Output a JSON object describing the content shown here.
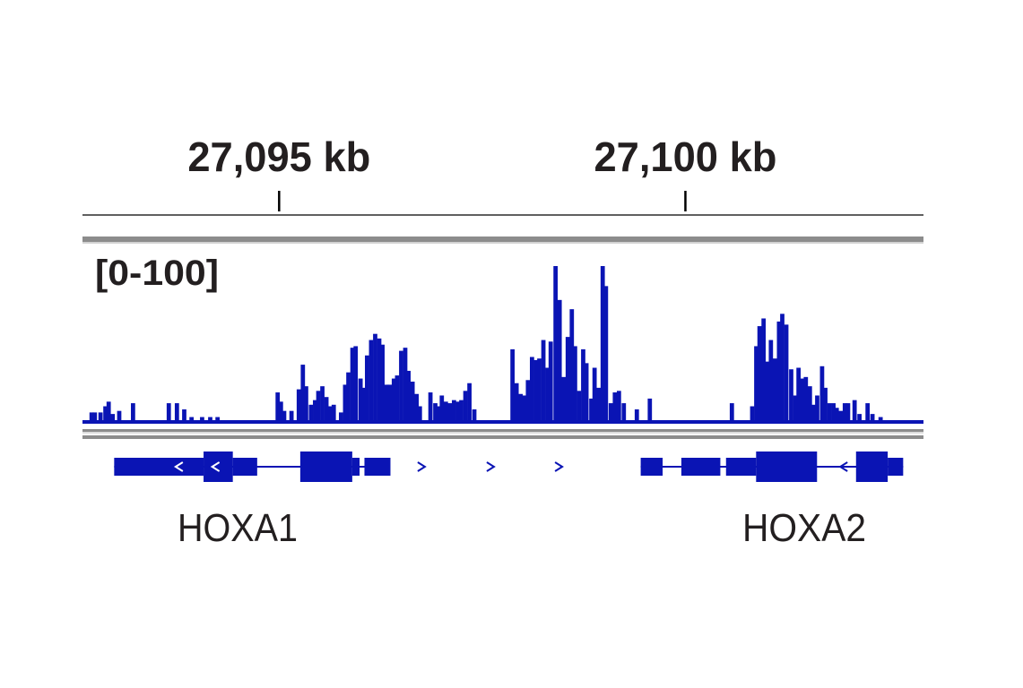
{
  "colors": {
    "track": "#0a14b4",
    "text": "#231f20",
    "separator": "#8c8c8c",
    "ruler_line": "#000000"
  },
  "chart_data": {
    "type": "area",
    "ruler": {
      "unit": "kb",
      "ticks": [
        {
          "position": 27095,
          "label": "27,095 kb"
        },
        {
          "position": 27100,
          "label": "27,100 kb"
        }
      ]
    },
    "data_range_label": "[0-100]",
    "xlim": [
      27092.58,
      27102.93
    ],
    "ylim": [
      0,
      100
    ],
    "signal": [
      {
        "x": 27092.69,
        "y": 5
      },
      {
        "x": 27092.73,
        "y": 5
      },
      {
        "x": 27092.8,
        "y": 5
      },
      {
        "x": 27092.86,
        "y": 9
      },
      {
        "x": 27092.9,
        "y": 12
      },
      {
        "x": 27092.95,
        "y": 4
      },
      {
        "x": 27093.03,
        "y": 6
      },
      {
        "x": 27093.2,
        "y": 11
      },
      {
        "x": 27093.64,
        "y": 11
      },
      {
        "x": 27093.74,
        "y": 11
      },
      {
        "x": 27093.83,
        "y": 7
      },
      {
        "x": 27093.92,
        "y": 2
      },
      {
        "x": 27094.05,
        "y": 2
      },
      {
        "x": 27094.15,
        "y": 2
      },
      {
        "x": 27094.24,
        "y": 2
      },
      {
        "x": 27094.98,
        "y": 18
      },
      {
        "x": 27095.02,
        "y": 12
      },
      {
        "x": 27095.06,
        "y": 6
      },
      {
        "x": 27095.15,
        "y": 6
      },
      {
        "x": 27095.24,
        "y": 20
      },
      {
        "x": 27095.29,
        "y": 36
      },
      {
        "x": 27095.33,
        "y": 22
      },
      {
        "x": 27095.39,
        "y": 10
      },
      {
        "x": 27095.44,
        "y": 13
      },
      {
        "x": 27095.48,
        "y": 19
      },
      {
        "x": 27095.53,
        "y": 22
      },
      {
        "x": 27095.58,
        "y": 15
      },
      {
        "x": 27095.62,
        "y": 9
      },
      {
        "x": 27095.67,
        "y": 10
      },
      {
        "x": 27095.76,
        "y": 5
      },
      {
        "x": 27095.81,
        "y": 23
      },
      {
        "x": 27095.85,
        "y": 31
      },
      {
        "x": 27095.9,
        "y": 47
      },
      {
        "x": 27095.94,
        "y": 48
      },
      {
        "x": 27096.0,
        "y": 27
      },
      {
        "x": 27096.04,
        "y": 21
      },
      {
        "x": 27096.08,
        "y": 42
      },
      {
        "x": 27096.13,
        "y": 52
      },
      {
        "x": 27096.18,
        "y": 56
      },
      {
        "x": 27096.23,
        "y": 53
      },
      {
        "x": 27096.27,
        "y": 49
      },
      {
        "x": 27096.32,
        "y": 23
      },
      {
        "x": 27096.36,
        "y": 23
      },
      {
        "x": 27096.41,
        "y": 27
      },
      {
        "x": 27096.45,
        "y": 29
      },
      {
        "x": 27096.5,
        "y": 45
      },
      {
        "x": 27096.55,
        "y": 47
      },
      {
        "x": 27096.59,
        "y": 32
      },
      {
        "x": 27096.64,
        "y": 25
      },
      {
        "x": 27096.69,
        "y": 17
      },
      {
        "x": 27096.73,
        "y": 9
      },
      {
        "x": 27096.86,
        "y": 18
      },
      {
        "x": 27096.92,
        "y": 11
      },
      {
        "x": 27096.96,
        "y": 9
      },
      {
        "x": 27097.0,
        "y": 16
      },
      {
        "x": 27097.05,
        "y": 12
      },
      {
        "x": 27097.1,
        "y": 11
      },
      {
        "x": 27097.15,
        "y": 13
      },
      {
        "x": 27097.2,
        "y": 12
      },
      {
        "x": 27097.24,
        "y": 13
      },
      {
        "x": 27097.29,
        "y": 19
      },
      {
        "x": 27097.34,
        "y": 24
      },
      {
        "x": 27097.4,
        "y": 7
      },
      {
        "x": 27097.87,
        "y": 46
      },
      {
        "x": 27097.92,
        "y": 24
      },
      {
        "x": 27097.97,
        "y": 17
      },
      {
        "x": 27098.01,
        "y": 16
      },
      {
        "x": 27098.06,
        "y": 26
      },
      {
        "x": 27098.11,
        "y": 41
      },
      {
        "x": 27098.16,
        "y": 39
      },
      {
        "x": 27098.2,
        "y": 40
      },
      {
        "x": 27098.25,
        "y": 52
      },
      {
        "x": 27098.3,
        "y": 34
      },
      {
        "x": 27098.34,
        "y": 51
      },
      {
        "x": 27098.4,
        "y": 100
      },
      {
        "x": 27098.45,
        "y": 78
      },
      {
        "x": 27098.5,
        "y": 28
      },
      {
        "x": 27098.55,
        "y": 54
      },
      {
        "x": 27098.6,
        "y": 72
      },
      {
        "x": 27098.64,
        "y": 48
      },
      {
        "x": 27098.69,
        "y": 19
      },
      {
        "x": 27098.74,
        "y": 46
      },
      {
        "x": 27098.78,
        "y": 37
      },
      {
        "x": 27098.84,
        "y": 14
      },
      {
        "x": 27098.88,
        "y": 34
      },
      {
        "x": 27098.93,
        "y": 21
      },
      {
        "x": 27098.98,
        "y": 100
      },
      {
        "x": 27099.02,
        "y": 87
      },
      {
        "x": 27099.08,
        "y": 11
      },
      {
        "x": 27099.13,
        "y": 18
      },
      {
        "x": 27099.18,
        "y": 19
      },
      {
        "x": 27099.24,
        "y": 11
      },
      {
        "x": 27099.4,
        "y": 7
      },
      {
        "x": 27099.56,
        "y": 14
      },
      {
        "x": 27100.57,
        "y": 11
      },
      {
        "x": 27100.82,
        "y": 9
      },
      {
        "x": 27100.87,
        "y": 48
      },
      {
        "x": 27100.91,
        "y": 61
      },
      {
        "x": 27100.96,
        "y": 66
      },
      {
        "x": 27101.01,
        "y": 38
      },
      {
        "x": 27101.05,
        "y": 52
      },
      {
        "x": 27101.1,
        "y": 40
      },
      {
        "x": 27101.15,
        "y": 64
      },
      {
        "x": 27101.19,
        "y": 69
      },
      {
        "x": 27101.24,
        "y": 62
      },
      {
        "x": 27101.3,
        "y": 33
      },
      {
        "x": 27101.35,
        "y": 16
      },
      {
        "x": 27101.39,
        "y": 34
      },
      {
        "x": 27101.44,
        "y": 27
      },
      {
        "x": 27101.48,
        "y": 28
      },
      {
        "x": 27101.53,
        "y": 22
      },
      {
        "x": 27101.58,
        "y": 10
      },
      {
        "x": 27101.62,
        "y": 16
      },
      {
        "x": 27101.68,
        "y": 35
      },
      {
        "x": 27101.72,
        "y": 21
      },
      {
        "x": 27101.77,
        "y": 11
      },
      {
        "x": 27101.82,
        "y": 11
      },
      {
        "x": 27101.86,
        "y": 8
      },
      {
        "x": 27101.91,
        "y": 6
      },
      {
        "x": 27101.96,
        "y": 11
      },
      {
        "x": 27102.0,
        "y": 11
      },
      {
        "x": 27102.08,
        "y": 13
      },
      {
        "x": 27102.14,
        "y": 4
      },
      {
        "x": 27102.24,
        "y": 11
      },
      {
        "x": 27102.3,
        "y": 4
      },
      {
        "x": 27102.4,
        "y": 2
      }
    ],
    "genes": [
      {
        "name": "HOXA1",
        "strand": "-",
        "span": [
          27092.97,
          27096.21
        ],
        "exons": [
          {
            "start": 27092.97,
            "end": 27094.07,
            "feature": "utr"
          },
          {
            "start": 27094.07,
            "end": 27094.43,
            "feature": "cds"
          },
          {
            "start": 27094.43,
            "end": 27094.73,
            "feature": "utr"
          },
          {
            "start": 27095.26,
            "end": 27095.9,
            "feature": "cds"
          },
          {
            "start": 27095.9,
            "end": 27095.99,
            "feature": "utr"
          },
          {
            "start": 27096.05,
            "end": 27096.37,
            "feature": "utr"
          }
        ]
      },
      {
        "name": "HOXA2",
        "strand": "-",
        "span": [
          27099.45,
          27102.68
        ],
        "exons": [
          {
            "start": 27099.45,
            "end": 27099.72,
            "feature": "utr"
          },
          {
            "start": 27099.95,
            "end": 27100.43,
            "feature": "utr"
          },
          {
            "start": 27100.5,
            "end": 27100.87,
            "feature": "utr"
          },
          {
            "start": 27100.87,
            "end": 27101.62,
            "feature": "cds"
          },
          {
            "start": 27102.1,
            "end": 27102.49,
            "feature": "cds"
          },
          {
            "start": 27102.49,
            "end": 27102.68,
            "feature": "utr"
          }
        ]
      }
    ],
    "intron_arrows": [
      {
        "x": 27093.77,
        "dir": "left"
      },
      {
        "x": 27094.22,
        "dir": "left"
      },
      {
        "x": 27096.75,
        "dir": "right"
      },
      {
        "x": 27097.6,
        "dir": "right"
      },
      {
        "x": 27098.44,
        "dir": "right"
      },
      {
        "x": 27101.95,
        "dir": "left"
      }
    ],
    "gene_labels": [
      "HOXA1",
      "HOXA2"
    ]
  }
}
